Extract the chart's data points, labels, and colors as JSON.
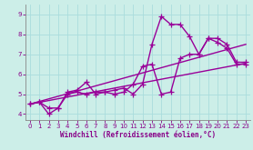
{
  "background_color": "#cceee8",
  "grid_color": "#aadddd",
  "line_color": "#990099",
  "marker": "+",
  "markersize": 4,
  "linewidth": 1.0,
  "x_label": "Windchill (Refroidissement éolien,°C)",
  "xlim": [
    -0.5,
    23.5
  ],
  "ylim": [
    3.7,
    9.5
  ],
  "yticks": [
    4,
    5,
    6,
    7,
    8,
    9
  ],
  "xticks": [
    0,
    1,
    2,
    3,
    4,
    5,
    6,
    7,
    8,
    9,
    10,
    11,
    12,
    13,
    14,
    15,
    16,
    17,
    18,
    19,
    20,
    21,
    22,
    23
  ],
  "series": [
    {
      "x": [
        0,
        1,
        2,
        3,
        4,
        5,
        6,
        7,
        8,
        9,
        10,
        11,
        12,
        13,
        14,
        15,
        16,
        17,
        18,
        19,
        20,
        21,
        22,
        23
      ],
      "y": [
        4.5,
        4.6,
        4.0,
        4.3,
        5.1,
        5.2,
        5.6,
        5.0,
        5.1,
        5.2,
        5.3,
        5.0,
        5.5,
        7.5,
        8.9,
        8.5,
        8.5,
        7.9,
        7.0,
        7.8,
        7.6,
        7.3,
        6.5,
        6.5
      ],
      "has_marker": true
    },
    {
      "x": [
        0,
        1,
        2,
        3,
        4,
        5,
        6,
        7,
        8,
        9,
        10,
        11,
        12,
        13,
        14,
        15,
        16,
        17,
        18,
        19,
        20,
        21,
        22,
        23
      ],
      "y": [
        4.5,
        4.6,
        4.3,
        4.3,
        5.0,
        5.1,
        5.0,
        5.1,
        5.1,
        5.0,
        5.1,
        5.5,
        6.4,
        6.5,
        5.0,
        5.1,
        6.8,
        7.0,
        7.0,
        7.8,
        7.8,
        7.5,
        6.6,
        6.6
      ],
      "has_marker": true
    },
    {
      "x": [
        0,
        23
      ],
      "y": [
        4.5,
        6.55
      ],
      "has_marker": false
    },
    {
      "x": [
        0,
        23
      ],
      "y": [
        4.5,
        7.5
      ],
      "has_marker": false
    }
  ]
}
